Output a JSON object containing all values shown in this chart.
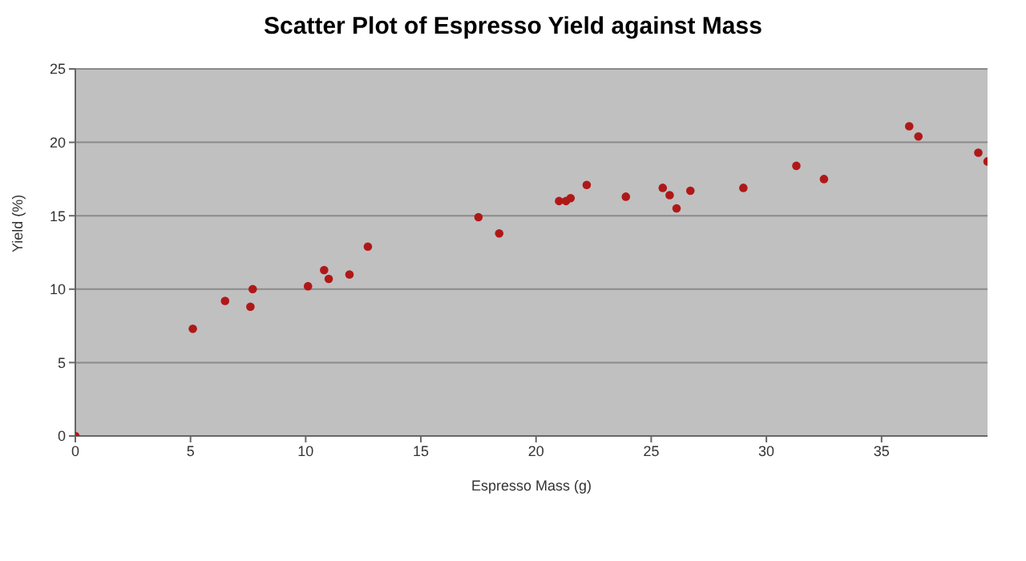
{
  "chart_data": {
    "type": "scatter",
    "title": "Scatter Plot of Espresso Yield against Mass",
    "xlabel": "Espresso Mass (g)",
    "ylabel": "Yield (%)",
    "x": [
      0,
      5.1,
      6.5,
      7.6,
      7.7,
      10.1,
      10.8,
      11.0,
      11.9,
      12.7,
      17.5,
      18.4,
      21.0,
      21.3,
      21.5,
      22.2,
      23.9,
      25.5,
      25.8,
      26.1,
      26.7,
      29.0,
      31.3,
      32.5,
      36.2,
      36.6,
      39.2,
      39.6
    ],
    "values": [
      0,
      7.3,
      9.2,
      8.8,
      10.0,
      10.2,
      11.3,
      10.7,
      11.0,
      12.9,
      14.9,
      13.8,
      16.0,
      16.0,
      16.2,
      17.1,
      16.3,
      16.9,
      16.4,
      15.5,
      16.7,
      16.9,
      18.4,
      17.5,
      21.1,
      20.4,
      19.3,
      18.7
    ],
    "color": "#b01818",
    "marker": "circle",
    "xlim": [
      0,
      39.6
    ],
    "xticks": [
      0,
      5,
      10,
      15,
      20,
      25,
      30,
      35
    ],
    "ylim": [
      0,
      25
    ],
    "yticks": [
      0,
      5,
      10,
      15,
      20,
      25
    ],
    "grid": "y"
  }
}
